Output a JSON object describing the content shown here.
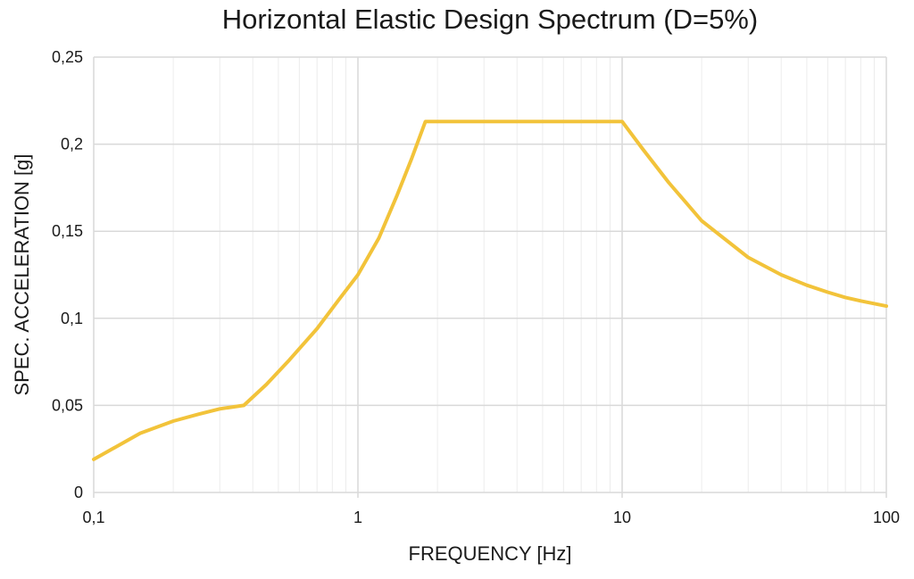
{
  "chart_data": {
    "type": "line",
    "title": "Horizontal Elastic Design Spectrum (D=5%)",
    "xlabel": "FREQUENCY [Hz]",
    "ylabel": "SPEC. ACCELERATION [g]",
    "x_scale": "log",
    "xlim": [
      0.1,
      100
    ],
    "ylim": [
      0,
      0.25
    ],
    "x_ticks": [
      0.1,
      1,
      10,
      100
    ],
    "x_tick_labels": [
      "0,1",
      "1",
      "10",
      "100"
    ],
    "y_ticks": [
      0,
      0.05,
      0.1,
      0.15,
      0.2,
      0.25
    ],
    "y_tick_labels": [
      "0",
      "0,05",
      "0,1",
      "0,15",
      "0,2",
      "0,25"
    ],
    "grid": true,
    "legend": "none",
    "colors": {
      "line": "#F2C33A",
      "grid": "#d9d9d9",
      "text": "#1a1a1a"
    },
    "series": [
      {
        "x": [
          0.1,
          0.15,
          0.2,
          0.25,
          0.3,
          0.37,
          0.45,
          0.55,
          0.7,
          0.85,
          1.0,
          1.2,
          1.4,
          1.6,
          1.8,
          3,
          5,
          7,
          10,
          12,
          15,
          20,
          30,
          40,
          50,
          60,
          70,
          80,
          100
        ],
        "y": [
          0.019,
          0.034,
          0.041,
          0.045,
          0.048,
          0.05,
          0.062,
          0.076,
          0.094,
          0.111,
          0.125,
          0.146,
          0.17,
          0.192,
          0.213,
          0.213,
          0.213,
          0.213,
          0.213,
          0.197,
          0.178,
          0.156,
          0.135,
          0.125,
          0.119,
          0.115,
          0.112,
          0.11,
          0.107
        ]
      }
    ]
  }
}
